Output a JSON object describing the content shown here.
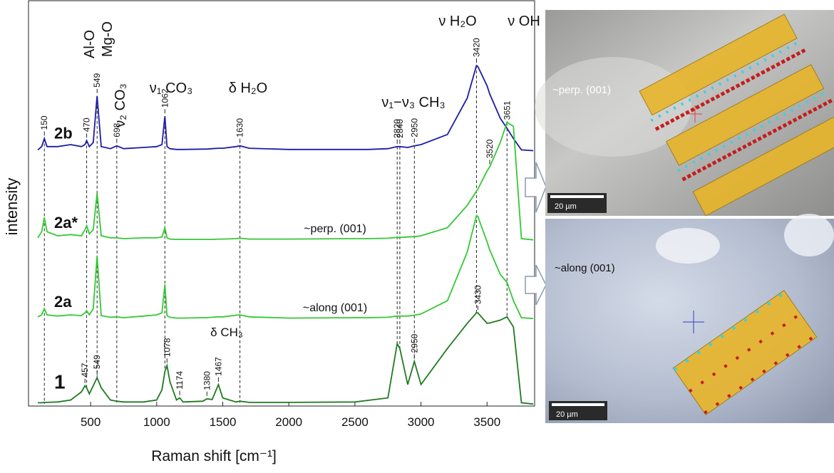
{
  "chart_data": {
    "type": "line",
    "xlabel": "Raman shift [cm⁻¹]",
    "ylabel": "intensity",
    "xlim": [
      30,
      3860
    ],
    "xticks": [
      500,
      1000,
      1500,
      2000,
      2500,
      3000,
      3500
    ],
    "ylim": [
      0,
      100
    ],
    "x": [
      100,
      130,
      150,
      170,
      250,
      350,
      430,
      457,
      470,
      490,
      520,
      549,
      580,
      650,
      698,
      750,
      900,
      1000,
      1040,
      1062,
      1078,
      1100,
      1150,
      1174,
      1200,
      1350,
      1380,
      1420,
      1467,
      1500,
      1600,
      1630,
      1700,
      2000,
      2500,
      2600,
      2750,
      2820,
      2840,
      2900,
      2950,
      3000,
      3200,
      3350,
      3420,
      3430,
      3500,
      3520,
      3600,
      3651,
      3700,
      3760,
      3850
    ],
    "series": [
      {
        "name": "2b",
        "color": "#1c1ca8",
        "values": [
          63.2,
          64,
          66,
          64,
          64,
          64.5,
          64,
          64.5,
          65.5,
          64,
          65,
          76.5,
          64,
          63.5,
          64.2,
          63.5,
          63.8,
          64,
          64.5,
          71.5,
          64,
          63.5,
          63.3,
          63.3,
          63.3,
          63.4,
          63.4,
          63.5,
          63.6,
          63.6,
          64,
          64.2,
          63.6,
          63.3,
          63.3,
          63.3,
          63.5,
          64,
          64,
          63.8,
          64.2,
          64.5,
          67,
          76,
          84,
          83.8,
          79,
          77,
          71,
          68.5,
          66,
          63.2,
          63
        ],
        "peaks": [
          150,
          470,
          549,
          698,
          1062,
          1630,
          2820,
          2840,
          2950,
          3420,
          3651
        ]
      },
      {
        "name": "2a*",
        "color": "#34c934",
        "values": [
          41.5,
          43,
          46.5,
          43,
          42,
          42.3,
          42,
          43.5,
          44.5,
          42.5,
          43.5,
          52.5,
          42,
          41.5,
          41.5,
          41.3,
          41.5,
          41.5,
          41.7,
          44,
          41.5,
          41.2,
          41.1,
          41.1,
          41.1,
          41.1,
          41.1,
          41.1,
          41.2,
          41.2,
          41.3,
          41.4,
          41.2,
          41.2,
          41.3,
          41.3,
          41.4,
          41.6,
          41.6,
          41.7,
          41.8,
          42,
          44,
          49.5,
          53,
          53.5,
          58,
          59,
          65,
          70,
          69,
          41.3,
          41
        ],
        "peaks": [
          3520
        ]
      },
      {
        "name": "2a",
        "color": "#34c934",
        "values": [
          22,
          22.5,
          24,
          22.5,
          22.2,
          22.5,
          22.3,
          23,
          23.5,
          22.5,
          24,
          37,
          22.3,
          21.9,
          22,
          21.8,
          22.2,
          22.5,
          23,
          30,
          22.3,
          21.9,
          21.7,
          21.7,
          21.7,
          21.8,
          21.8,
          21.9,
          22,
          22,
          22.4,
          22.5,
          22,
          21.7,
          21.8,
          21.8,
          21.9,
          22.2,
          22.2,
          22.2,
          22.4,
          22.7,
          26,
          38,
          47,
          46.8,
          40.5,
          38.5,
          32.5,
          30.5,
          26,
          21.8,
          21.6
        ],
        "peaks": []
      },
      {
        "name": "1",
        "color": "#1f7a1f",
        "values": [
          0.8,
          0.8,
          0.9,
          0.9,
          1,
          1.5,
          3.5,
          5,
          4.5,
          3,
          5,
          7,
          4.5,
          1.5,
          1.2,
          1,
          1,
          1.5,
          4,
          8.5,
          10,
          6,
          1.5,
          2,
          1,
          1.2,
          1.8,
          1.6,
          5.3,
          2,
          1,
          1.2,
          0.9,
          0.9,
          1,
          1.4,
          2,
          15.4,
          14.2,
          5.3,
          11,
          5.3,
          14.2,
          20.4,
          23,
          23,
          20.4,
          20.5,
          21.2,
          22,
          19.5,
          0.8,
          0.5
        ],
        "peaks": [
          457,
          549,
          1078,
          1174,
          1380,
          1467,
          2950,
          3430
        ]
      }
    ],
    "annotations": [
      "Al-O",
      "Mg-O",
      "ν₂ CO₃",
      "ν₁ CO₃",
      "δ H₂O",
      "ν₁−ν₃ CH₃",
      "ν H₂O",
      "ν OH",
      "δ CH₃",
      "~perp. (001)",
      "~along (001)"
    ]
  },
  "images": [
    {
      "label": "~perp. (001)",
      "scale_bar": "20 µm"
    },
    {
      "label": "~along (001)",
      "scale_bar": "20 µm"
    }
  ]
}
